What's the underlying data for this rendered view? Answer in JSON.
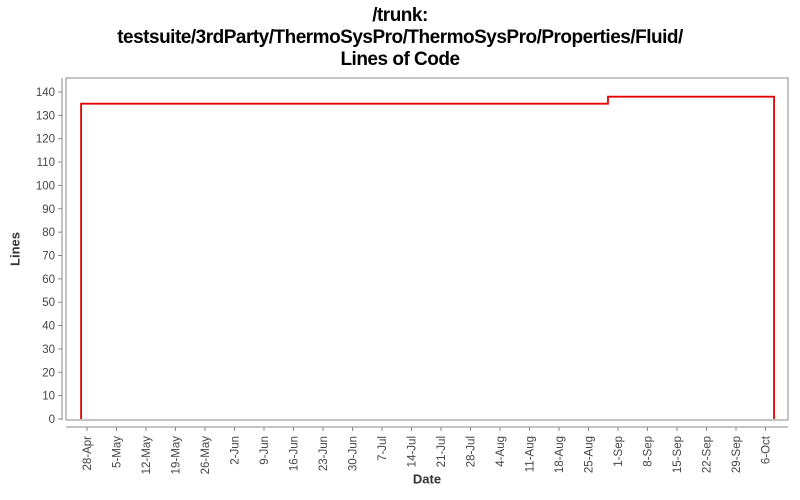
{
  "title": {
    "line1": "/trunk:",
    "line2": "testsuite/3rdParty/ThermoSysPro/ThermoSysPro/Properties/Fluid/",
    "line3": "Lines of Code"
  },
  "chart_data": {
    "type": "line",
    "title": "/trunk: testsuite/3rdParty/ThermoSysPro/ThermoSysPro/Properties/Fluid/ Lines of Code",
    "xlabel": "Date",
    "ylabel": "Lines",
    "legend": "none",
    "grid": false,
    "x_unit": "weeks since 28-Apr (one tick per week)",
    "x_tick_labels": [
      "28-Apr",
      "5-May",
      "12-May",
      "19-May",
      "26-May",
      "2-Jun",
      "9-Jun",
      "16-Jun",
      "23-Jun",
      "30-Jun",
      "7-Jul",
      "14-Jul",
      "21-Jul",
      "28-Jul",
      "4-Aug",
      "11-Aug",
      "18-Aug",
      "25-Aug",
      "1-Sep",
      "8-Sep",
      "15-Sep",
      "22-Sep",
      "29-Sep",
      "6-Oct"
    ],
    "y_ticks": [
      0,
      10,
      20,
      30,
      40,
      50,
      60,
      70,
      80,
      90,
      100,
      110,
      120,
      130,
      140
    ],
    "ylim": [
      0,
      146
    ],
    "xlim": [
      -0.72,
      23.76
    ],
    "series": [
      {
        "name": "Lines of Code",
        "color": "#e40000",
        "points": [
          {
            "x": -0.2,
            "y": 0
          },
          {
            "x": -0.2,
            "y": 135
          },
          {
            "x": 17.66,
            "y": 135
          },
          {
            "x": 17.66,
            "y": 138
          },
          {
            "x": 23.29,
            "y": 138
          },
          {
            "x": 23.29,
            "y": 0
          }
        ]
      }
    ],
    "colors": {
      "line": "#e40000",
      "plot_border": "#888888",
      "axis_line": "#888888",
      "tick_label": "#444444",
      "axis_label": "#333333",
      "title": "#000000",
      "background": "#ffffff"
    }
  }
}
